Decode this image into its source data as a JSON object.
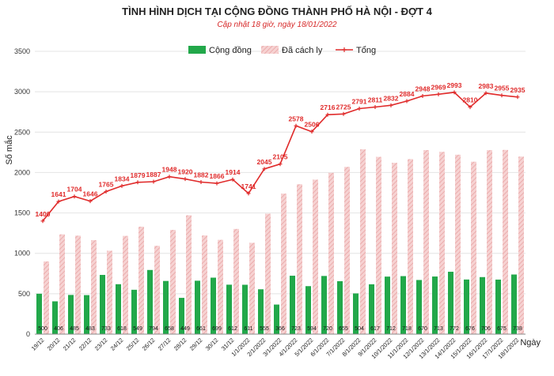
{
  "chart_data": {
    "type": "bar",
    "title": "TÌNH HÌNH DỊCH TẠI CỘNG ĐỒNG THÀNH PHỐ HÀ NỘI - ĐỢT 4",
    "subtitle": "Cập nhật 18 giờ, ngày 18/01/2022",
    "xlabel": "Ngày",
    "ylabel": "Số mắc",
    "ylim": [
      0,
      3500
    ],
    "yticks": [
      0,
      500,
      1000,
      1500,
      2000,
      2500,
      3000,
      3500
    ],
    "grid": true,
    "legend_position": "top-center",
    "categories": [
      "19/12",
      "20/12",
      "21/12",
      "22/12",
      "23/12",
      "24/12",
      "25/12",
      "26/12",
      "27/12",
      "28/12",
      "29/12",
      "30/12",
      "31/12",
      "1/1/2022",
      "2/1/2022",
      "3/1/2022",
      "4/1/2022",
      "5/1/2022",
      "6/1/2022",
      "7/1/2022",
      "8/1/2022",
      "9/1/2022",
      "10/1/2022",
      "11/1/2022",
      "12/1/2022",
      "13/1/2022",
      "14/1/2022",
      "15/1/2022",
      "16/1/2022",
      "17/1/2022",
      "18/1/2022"
    ],
    "series": [
      {
        "name": "Cộng đồng",
        "kind": "bar",
        "color": "#22a84a",
        "values": [
          500,
          406,
          485,
          483,
          733,
          618,
          549,
          794,
          658,
          449,
          661,
          699,
          612,
          611,
          555,
          366,
          723,
          594,
          720,
          655,
          504,
          617,
          712,
          718,
          670,
          713,
          772,
          676,
          706,
          675,
          738
        ]
      },
      {
        "name": "Đã cách ly",
        "kind": "bar",
        "color": "#f2b8b8",
        "values": [
          900,
          1235,
          1219,
          1163,
          1032,
          1216,
          1330,
          1093,
          1290,
          1471,
          1221,
          1167,
          1302,
          1130,
          1490,
          1739,
          1855,
          1912,
          1996,
          2070,
          2287,
          2194,
          2120,
          2166,
          2278,
          2256,
          2221,
          2134,
          2277,
          2280,
          2197
        ]
      },
      {
        "name": "Tổng",
        "kind": "line",
        "color": "#e02b2b",
        "values": [
          1400,
          1641,
          1704,
          1646,
          1765,
          1834,
          1879,
          1887,
          1948,
          1920,
          1882,
          1866,
          1914,
          1741,
          2045,
          2105,
          2578,
          2506,
          2716,
          2725,
          2791,
          2811,
          2832,
          2884,
          2948,
          2969,
          2993,
          2810,
          2983,
          2955,
          2935
        ]
      }
    ]
  }
}
